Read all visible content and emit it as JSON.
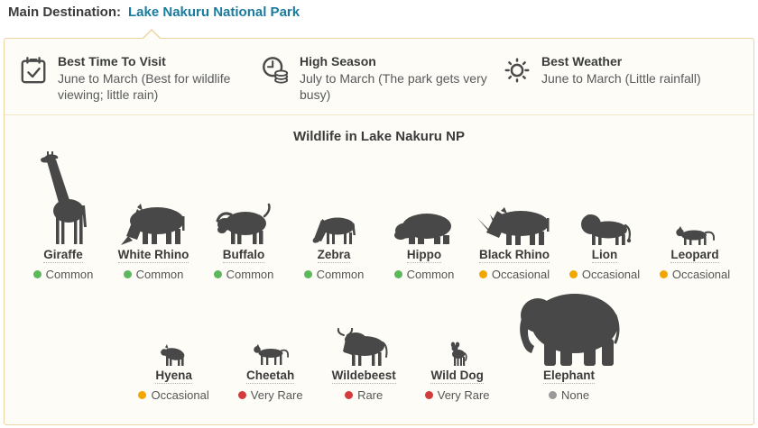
{
  "header": {
    "label": "Main Destination:",
    "destination": "Lake Nakuru National Park"
  },
  "info_cards": [
    {
      "icon": "calendar-check-icon",
      "title": "Best Time To Visit",
      "description": "June to March (Best for wildlife viewing; little rain)"
    },
    {
      "icon": "clock-coins-icon",
      "title": "High Season",
      "description": "July to March (The park gets very busy)"
    },
    {
      "icon": "sun-icon",
      "title": "Best Weather",
      "description": "June to March (Little rainfall)"
    }
  ],
  "wildlife": {
    "title": "Wildlife in Lake Nakuru NP",
    "rows": [
      [
        {
          "name": "Giraffe",
          "status": "Common",
          "icon": "giraffe-icon"
        },
        {
          "name": "White Rhino",
          "status": "Common",
          "icon": "white-rhino-icon"
        },
        {
          "name": "Buffalo",
          "status": "Common",
          "icon": "buffalo-icon"
        },
        {
          "name": "Zebra",
          "status": "Common",
          "icon": "zebra-icon"
        },
        {
          "name": "Hippo",
          "status": "Common",
          "icon": "hippo-icon"
        },
        {
          "name": "Black Rhino",
          "status": "Occasional",
          "icon": "black-rhino-icon"
        },
        {
          "name": "Lion",
          "status": "Occasional",
          "icon": "lion-icon"
        },
        {
          "name": "Leopard",
          "status": "Occasional",
          "icon": "leopard-icon"
        }
      ],
      [
        {
          "name": "Hyena",
          "status": "Occasional",
          "icon": "hyena-icon"
        },
        {
          "name": "Cheetah",
          "status": "Very Rare",
          "icon": "cheetah-icon"
        },
        {
          "name": "Wildebeest",
          "status": "Rare",
          "icon": "wildebeest-icon"
        },
        {
          "name": "Wild Dog",
          "status": "Very Rare",
          "icon": "wild-dog-icon"
        },
        {
          "name": "Elephant",
          "status": "None",
          "icon": "elephant-icon"
        }
      ]
    ]
  },
  "status_colors": {
    "Common": "#5cb85c",
    "Occasional": "#f2a700",
    "Rare": "#d23c3c",
    "Very Rare": "#d23c3c",
    "None": "#9a9a9a"
  },
  "colors": {
    "accent_link": "#1a7b9d",
    "panel_border": "#ecd5a4",
    "panel_bg": "#fdfcf6",
    "divider": "#f3e6c9",
    "silhouette": "#484848",
    "icon_stroke": "#4a4a4a"
  }
}
